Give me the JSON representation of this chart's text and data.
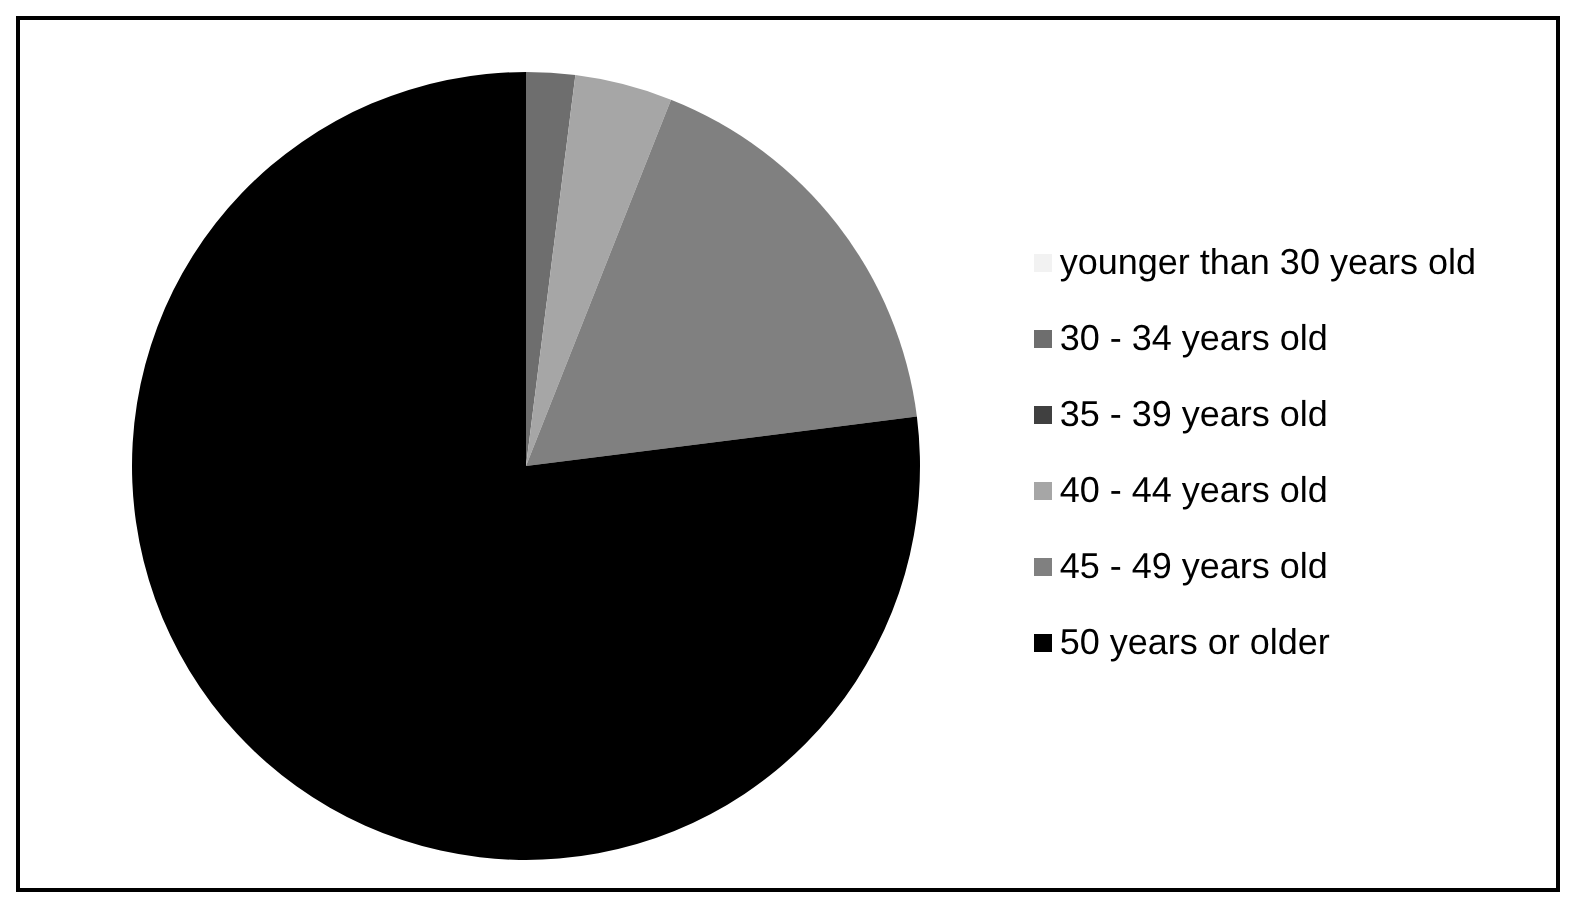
{
  "chart_data": {
    "type": "pie",
    "categories": [
      "younger than 30 years old",
      "30 - 34 years old",
      "35 - 39 years old",
      "40 - 44 years old",
      "45 - 49 years old",
      "50 years or older"
    ],
    "values": [
      0,
      2,
      0,
      4,
      17,
      77
    ],
    "colors": [
      "#f2f2f2",
      "#6e6e6e",
      "#404040",
      "#a6a6a6",
      "#808080",
      "#000000"
    ],
    "legend": "right"
  }
}
